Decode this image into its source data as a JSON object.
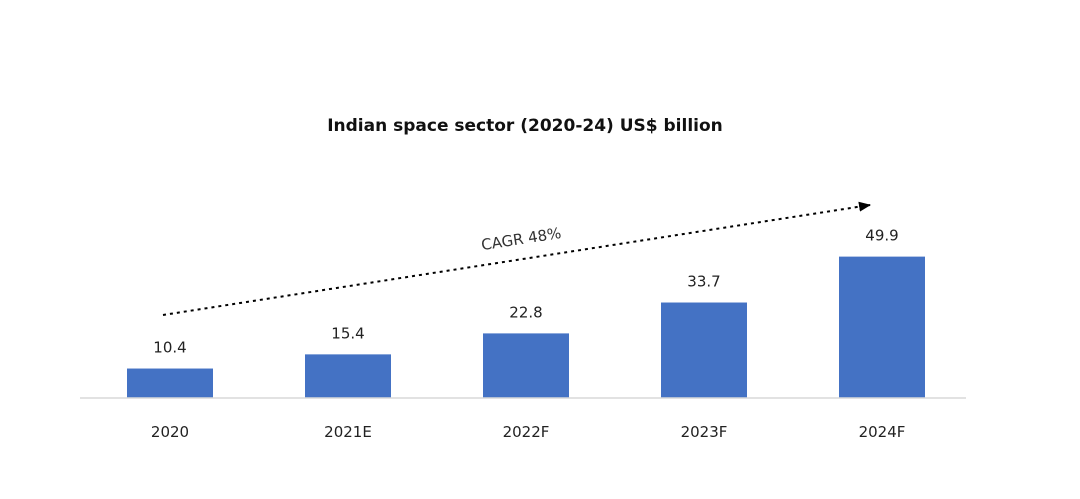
{
  "chart_data": {
    "type": "bar",
    "title": "Indian space sector (2020-24) US$ billion",
    "categories": [
      "2020",
      "2021E",
      "2022F",
      "2023F",
      "2024F"
    ],
    "values": [
      10.4,
      15.4,
      22.8,
      33.7,
      49.9
    ],
    "value_labels": [
      "10.4",
      "15.4",
      "22.8",
      "33.7",
      "49.9"
    ],
    "xlabel": "",
    "ylabel": "",
    "ylim": [
      0,
      54
    ],
    "grid": false,
    "legend": "none",
    "annotation": "CAGR 48%",
    "colors": {
      "bar": "#4472C4",
      "axis": "#D9D9D9",
      "arrow": "#000000"
    }
  }
}
